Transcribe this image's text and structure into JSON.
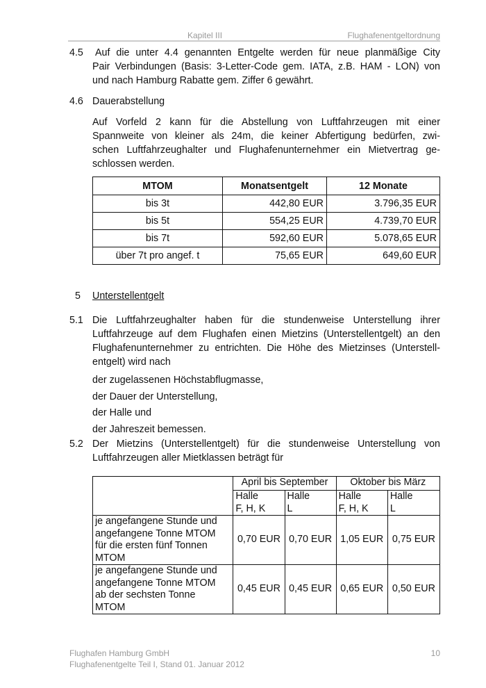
{
  "header": {
    "chapter": "Kapitel III",
    "title": "Flughafenentgeltordnung"
  },
  "s45": {
    "num": "4.5",
    "lines": [
      "Auf die unter 4.4 genannten Entgelte werden für neue planmäßige City",
      "Pair Verbindungen (Basis: 3-Letter-Code gem. IATA, z.B. HAM - LON) von"
    ],
    "last": "und nach Hamburg Rabatte gem. Ziffer 6 gewährt."
  },
  "s46": {
    "num": "4.6",
    "title": "Dauerabstellung",
    "lines": [
      "Auf Vorfeld 2 kann für die Abstellung von Luftfahrzeugen mit einer",
      "Spannweite von kleiner als 24m, die keiner Abfertigung bedürfen, zwi-",
      "schen Luftfahrzeughalter und Flughafenunternehmer ein Mietvertrag ge-"
    ],
    "last": "schlossen werden."
  },
  "table1": {
    "headers": [
      "MTOM",
      "Monatsentgelt",
      "12 Monate"
    ],
    "rows": [
      [
        "bis 3t",
        "442,80 EUR",
        "3.796,35 EUR"
      ],
      [
        "bis 5t",
        "554,25 EUR",
        "4.739,70 EUR"
      ],
      [
        "bis 7t",
        "592,60 EUR",
        "5.078,65 EUR"
      ],
      [
        "über 7t pro angef. t",
        "75,65 EUR",
        "649,60 EUR"
      ]
    ]
  },
  "s5": {
    "num": "5",
    "title": "Unterstellentgelt"
  },
  "s51": {
    "num": "5.1",
    "lines": [
      "Die Luftfahrzeughalter haben für die stundenweise Unterstellung ihrer",
      "Luftfahrzeuge auf dem Flughafen einen Mietzins (Unterstellentgelt) an den",
      "Flughafenunternehmer zu entrichten. Die Höhe des Mietzinses (Unterstell-"
    ],
    "last": "entgelt) wird nach",
    "items": [
      "der zugelassenen Höchstabflugmasse,",
      "der Dauer der Unterstellung,",
      "der Halle und",
      "der Jahreszeit bemessen."
    ]
  },
  "s52": {
    "num": "5.2",
    "lines": [
      "Der Mietzins (Unterstellentgelt) für die stundenweise Unterstellung von"
    ],
    "last": "Luftfahrzeugen aller Mietklassen beträgt für"
  },
  "table2": {
    "seasons": [
      "April bis September",
      "Oktober bis März"
    ],
    "halls": [
      [
        "Halle",
        "F, H, K"
      ],
      [
        "Halle",
        "L"
      ],
      [
        "Halle",
        "F, H, K"
      ],
      [
        "Halle",
        "L"
      ]
    ],
    "rows": [
      {
        "label": [
          "je angefangene Stunde und",
          "angefangene Tonne MTOM",
          "für die ersten fünf Tonnen",
          "MTOM"
        ],
        "values": [
          "0,70 EUR",
          "0,70 EUR",
          "1,05 EUR",
          "0,75 EUR"
        ]
      },
      {
        "label": [
          "je angefangene Stunde und",
          "angefangene Tonne MTOM",
          "ab der sechsten Tonne",
          "MTOM"
        ],
        "values": [
          "0,45 EUR",
          "0,45 EUR",
          "0,65 EUR",
          "0,50 EUR"
        ]
      }
    ]
  },
  "footer": {
    "company": "Flughafen Hamburg GmbH",
    "doc": "Flughafenentgelte Teil I, Stand 01. Januar 2012",
    "page": "10"
  }
}
